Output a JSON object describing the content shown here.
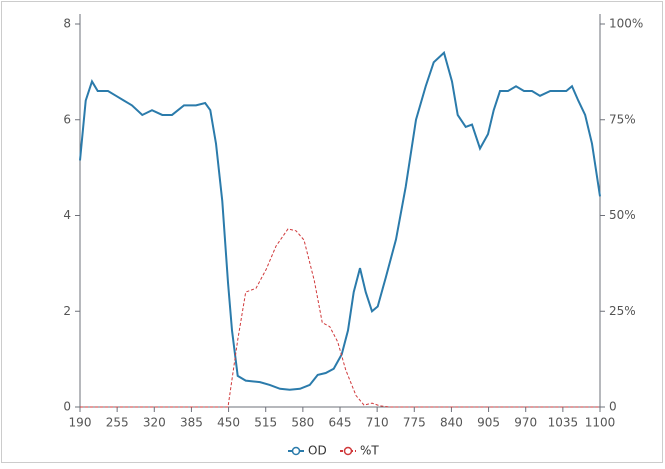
{
  "chart_data": {
    "type": "line",
    "xlim": [
      190,
      1100
    ],
    "xticks": [
      190,
      255,
      320,
      385,
      450,
      515,
      580,
      645,
      710,
      775,
      840,
      905,
      970,
      1035,
      1100
    ],
    "ylim": [
      0,
      8
    ],
    "yticks": [
      0,
      2,
      4,
      6,
      8
    ],
    "y2lim": [
      0,
      100
    ],
    "y2ticks": [
      0,
      {
        "value": 25,
        "label": "25%"
      },
      {
        "value": 50,
        "label": "50%"
      },
      {
        "value": 75,
        "label": "75%"
      },
      {
        "value": 100,
        "label": "100%"
      }
    ],
    "legend": "bottom",
    "series": [
      {
        "name": "OD",
        "color": "#2b7bab",
        "dashed": false,
        "x": [
          190,
          200,
          211,
          221,
          239,
          253,
          267,
          281,
          299,
          316,
          334,
          351,
          372,
          393,
          409,
          418,
          428,
          439,
          449,
          456,
          466,
          480,
          505,
          522,
          540,
          557,
          575,
          592,
          606,
          620,
          634,
          648,
          659,
          669,
          680,
          690,
          701,
          711,
          725,
          743,
          760,
          778,
          795,
          809,
          827,
          841,
          851,
          865,
          876,
          890,
          904,
          914,
          925,
          939,
          953,
          967,
          981,
          995,
          1013,
          1027,
          1041,
          1051,
          1062,
          1074,
          1086,
          1100
        ],
        "values": [
          5.15,
          6.4,
          6.8,
          6.6,
          6.6,
          6.5,
          6.4,
          6.3,
          6.1,
          6.2,
          6.1,
          6.1,
          6.3,
          6.3,
          6.35,
          6.2,
          5.5,
          4.3,
          2.6,
          1.6,
          0.65,
          0.55,
          0.52,
          0.46,
          0.38,
          0.36,
          0.38,
          0.46,
          0.67,
          0.71,
          0.8,
          1.1,
          1.6,
          2.4,
          2.9,
          2.4,
          2.0,
          2.1,
          2.7,
          3.5,
          4.6,
          6.0,
          6.7,
          7.2,
          7.4,
          6.8,
          6.1,
          5.85,
          5.9,
          5.4,
          5.7,
          6.2,
          6.6,
          6.6,
          6.7,
          6.6,
          6.6,
          6.5,
          6.6,
          6.6,
          6.6,
          6.7,
          6.4,
          6.1,
          5.5,
          4.4
        ]
      },
      {
        "name": "%T",
        "color": "#d0393b",
        "dashed": true,
        "axis": "y2",
        "x": [
          190,
          449,
          466,
          480,
          498,
          516,
          533,
          554,
          568,
          582,
          600,
          614,
          627,
          641,
          655,
          673,
          687,
          701,
          715,
          732,
          1100
        ],
        "values": [
          0,
          0,
          17.5,
          30,
          31,
          36,
          42,
          46.5,
          46,
          43.6,
          33,
          22,
          21,
          17,
          9.7,
          3,
          0.5,
          1,
          0.3,
          0,
          0
        ]
      }
    ]
  }
}
